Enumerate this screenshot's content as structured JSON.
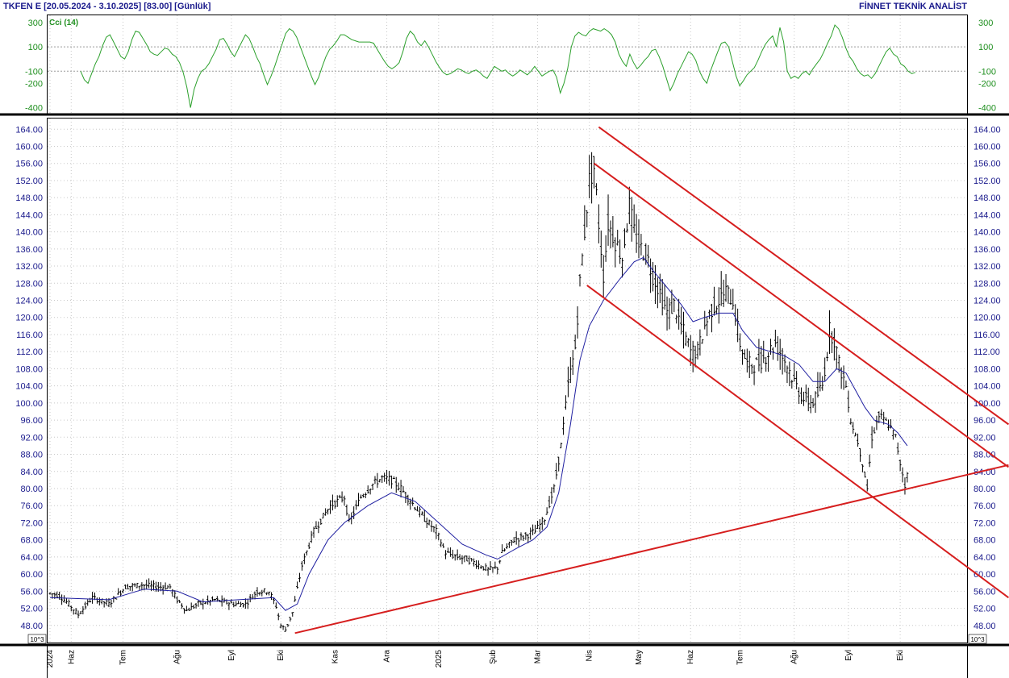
{
  "header": {
    "title": "TKFEN E  [20.05.2024 - 3.10.2025]  [83.00]  [Günlük]",
    "brand": "FİNNET TEKNİK ANALİST"
  },
  "indicator": {
    "label": "Cci (14)",
    "ticks": [
      {
        "v": 300,
        "label": "300"
      },
      {
        "v": 100,
        "label": "100"
      },
      {
        "v": -100,
        "label": "-100"
      },
      {
        "v": -200,
        "label": "-200"
      },
      {
        "v": -400,
        "label": "-400"
      }
    ],
    "ref_lines": [
      100,
      -100
    ],
    "values": [
      -100,
      -170,
      -200,
      -120,
      -40,
      20,
      110,
      180,
      200,
      140,
      80,
      20,
      0,
      60,
      160,
      230,
      220,
      170,
      120,
      60,
      40,
      30,
      60,
      90,
      80,
      40,
      20,
      -30,
      -110,
      -230,
      -400,
      -250,
      -160,
      -100,
      -80,
      -40,
      20,
      80,
      160,
      170,
      120,
      60,
      20,
      80,
      140,
      200,
      170,
      100,
      20,
      -40,
      -130,
      -210,
      -140,
      -60,
      30,
      120,
      210,
      250,
      230,
      180,
      100,
      20,
      -60,
      -140,
      -210,
      -150,
      -60,
      20,
      80,
      110,
      150,
      200,
      200,
      180,
      160,
      150,
      140,
      140,
      140,
      140,
      130,
      80,
      30,
      -20,
      -60,
      -80,
      -60,
      -30,
      60,
      170,
      230,
      200,
      140,
      110,
      150,
      100,
      40,
      -20,
      -70,
      -110,
      -130,
      -120,
      -100,
      -80,
      -90,
      -110,
      -120,
      -100,
      -90,
      -110,
      -140,
      -160,
      -110,
      -60,
      -80,
      -100,
      -90,
      -120,
      -140,
      -120,
      -90,
      -110,
      -130,
      -100,
      -60,
      -100,
      -140,
      -120,
      -100,
      -90,
      -150,
      -280,
      -200,
      -80,
      100,
      190,
      220,
      200,
      190,
      230,
      250,
      240,
      230,
      250,
      230,
      200,
      140,
      40,
      -20,
      -60,
      40,
      -30,
      -80,
      -50,
      -10,
      20,
      70,
      80,
      20,
      -60,
      -160,
      -260,
      -200,
      -120,
      -60,
      0,
      60,
      40,
      -10,
      -100,
      -160,
      -200,
      -100,
      -20,
      60,
      130,
      140,
      100,
      -20,
      -140,
      -220,
      -180,
      -130,
      -100,
      -70,
      -10,
      60,
      120,
      160,
      190,
      100,
      260,
      140,
      -100,
      -160,
      -140,
      -160,
      -120,
      -100,
      -130,
      -80,
      -40,
      0,
      60,
      130,
      190,
      280,
      250,
      180,
      90,
      20,
      -20,
      -80,
      -120,
      -140,
      -130,
      -160,
      -120,
      -60,
      0,
      60,
      90,
      40,
      20,
      -40,
      -60,
      -100,
      -120,
      -110
    ],
    "ymin": -450,
    "ymax": 360
  },
  "chart_data": {
    "type": "ohlc",
    "instrument": "TKFEN",
    "period": "20.05.2024 - 3.10.2025",
    "last": 83.0,
    "interval": "Günlük",
    "ylim": [
      44.0,
      166.5
    ],
    "y_ticks": [
      "164.00",
      "160.00",
      "156.00",
      "152.00",
      "148.00",
      "144.00",
      "140.00",
      "136.00",
      "132.00",
      "128.00",
      "124.00",
      "120.00",
      "116.00",
      "112.00",
      "108.00",
      "104.00",
      "100.00",
      "96.00",
      "92.00",
      "88.00",
      "84.00",
      "80.00",
      "76.00",
      "72.00",
      "68.00",
      "64.00",
      "60.00",
      "56.00",
      "52.00",
      "48.00"
    ],
    "x_ticks": [
      {
        "label": "2024",
        "i": 0
      },
      {
        "label": "Haz",
        "i": 9
      },
      {
        "label": "Tem",
        "i": 31
      },
      {
        "label": "Ağu",
        "i": 54
      },
      {
        "label": "Eyl",
        "i": 77
      },
      {
        "label": "Eki",
        "i": 98
      },
      {
        "label": "Kas",
        "i": 121
      },
      {
        "label": "Ara",
        "i": 143
      },
      {
        "label": "2025",
        "i": 165
      },
      {
        "label": "Şub",
        "i": 188
      },
      {
        "label": "Mar",
        "i": 207
      },
      {
        "label": "Nis",
        "i": 229
      },
      {
        "label": "May",
        "i": 250
      },
      {
        "label": "Haz",
        "i": 272
      },
      {
        "label": "Tem",
        "i": 293
      },
      {
        "label": "Ağu",
        "i": 316
      },
      {
        "label": "Eyl",
        "i": 339
      },
      {
        "label": "Eki",
        "i": 361
      }
    ],
    "price_anchors": [
      [
        0,
        55.5
      ],
      [
        4,
        55
      ],
      [
        8,
        53
      ],
      [
        12,
        50.5
      ],
      [
        18,
        54.5
      ],
      [
        25,
        53
      ],
      [
        32,
        57
      ],
      [
        39,
        57.5
      ],
      [
        46,
        57
      ],
      [
        51,
        57
      ],
      [
        54,
        54
      ],
      [
        58,
        51.5
      ],
      [
        63,
        53
      ],
      [
        70,
        54
      ],
      [
        78,
        53
      ],
      [
        83,
        53
      ],
      [
        88,
        56
      ],
      [
        93,
        56
      ],
      [
        96,
        52.5
      ],
      [
        98,
        48
      ],
      [
        100,
        47
      ],
      [
        103,
        51
      ],
      [
        107,
        62
      ],
      [
        112,
        70
      ],
      [
        119,
        76
      ],
      [
        125,
        78
      ],
      [
        127,
        72
      ],
      [
        132,
        78
      ],
      [
        137,
        81
      ],
      [
        141,
        82.5
      ],
      [
        145,
        82
      ],
      [
        149,
        80
      ],
      [
        154,
        76.5
      ],
      [
        159,
        73
      ],
      [
        164,
        70
      ],
      [
        168,
        65
      ],
      [
        173,
        64
      ],
      [
        177,
        63.5
      ],
      [
        181,
        62.5
      ],
      [
        186,
        61
      ],
      [
        190,
        61.5
      ],
      [
        192,
        65
      ],
      [
        197,
        68
      ],
      [
        202,
        69
      ],
      [
        206,
        70
      ],
      [
        210,
        73
      ],
      [
        214,
        80
      ],
      [
        217,
        90
      ],
      [
        220,
        104
      ],
      [
        223,
        113
      ],
      [
        225,
        128
      ],
      [
        227,
        140
      ],
      [
        229,
        152
      ],
      [
        231,
        155
      ],
      [
        233,
        142
      ],
      [
        235,
        130
      ],
      [
        237,
        142
      ],
      [
        240,
        138
      ],
      [
        243,
        134
      ],
      [
        246,
        146
      ],
      [
        248,
        140
      ],
      [
        251,
        136
      ],
      [
        253,
        135
      ],
      [
        256,
        130
      ],
      [
        259,
        126
      ],
      [
        262,
        121
      ],
      [
        265,
        123
      ],
      [
        268,
        118
      ],
      [
        272,
        112
      ],
      [
        275,
        112
      ],
      [
        278,
        118
      ],
      [
        281,
        122
      ],
      [
        284,
        124
      ],
      [
        287,
        126
      ],
      [
        290,
        124
      ],
      [
        293,
        114
      ],
      [
        296,
        109
      ],
      [
        300,
        109
      ],
      [
        304,
        111
      ],
      [
        308,
        114
      ],
      [
        312,
        110
      ],
      [
        316,
        105
      ],
      [
        320,
        101
      ],
      [
        324,
        100
      ],
      [
        328,
        104
      ],
      [
        330,
        112
      ],
      [
        331,
        117
      ],
      [
        333,
        115
      ],
      [
        335,
        109
      ],
      [
        338,
        104
      ],
      [
        340,
        96
      ],
      [
        343,
        91
      ],
      [
        345,
        86
      ],
      [
        347,
        80
      ],
      [
        349,
        92
      ],
      [
        352,
        97
      ],
      [
        356,
        95
      ],
      [
        359,
        92
      ],
      [
        361,
        86
      ],
      [
        363,
        81
      ],
      [
        364,
        83
      ]
    ],
    "sma": [
      {
        "x": 0,
        "y": 54.5
      },
      {
        "x": 25,
        "y": 54
      },
      {
        "x": 40,
        "y": 56.5
      },
      {
        "x": 54,
        "y": 56
      },
      {
        "x": 65,
        "y": 53.5
      },
      {
        "x": 80,
        "y": 54
      },
      {
        "x": 95,
        "y": 54.5
      },
      {
        "x": 100,
        "y": 51.5
      },
      {
        "x": 105,
        "y": 53
      },
      {
        "x": 110,
        "y": 60
      },
      {
        "x": 118,
        "y": 68
      },
      {
        "x": 125,
        "y": 72
      },
      {
        "x": 135,
        "y": 76
      },
      {
        "x": 145,
        "y": 79
      },
      {
        "x": 155,
        "y": 77
      },
      {
        "x": 165,
        "y": 72
      },
      {
        "x": 175,
        "y": 67
      },
      {
        "x": 185,
        "y": 64.5
      },
      {
        "x": 190,
        "y": 63.5
      },
      {
        "x": 198,
        "y": 66
      },
      {
        "x": 205,
        "y": 68
      },
      {
        "x": 211,
        "y": 71
      },
      {
        "x": 216,
        "y": 79
      },
      {
        "x": 221,
        "y": 95
      },
      {
        "x": 225,
        "y": 110
      },
      {
        "x": 229,
        "y": 118
      },
      {
        "x": 235,
        "y": 124
      },
      {
        "x": 242,
        "y": 129
      },
      {
        "x": 248,
        "y": 133
      },
      {
        "x": 252,
        "y": 134
      },
      {
        "x": 256,
        "y": 131
      },
      {
        "x": 262,
        "y": 127
      },
      {
        "x": 268,
        "y": 123
      },
      {
        "x": 273,
        "y": 119
      },
      {
        "x": 278,
        "y": 120
      },
      {
        "x": 284,
        "y": 121
      },
      {
        "x": 290,
        "y": 121
      },
      {
        "x": 294,
        "y": 117
      },
      {
        "x": 300,
        "y": 113
      },
      {
        "x": 306,
        "y": 112
      },
      {
        "x": 312,
        "y": 111
      },
      {
        "x": 318,
        "y": 109
      },
      {
        "x": 324,
        "y": 105
      },
      {
        "x": 329,
        "y": 105
      },
      {
        "x": 334,
        "y": 108
      },
      {
        "x": 338,
        "y": 107
      },
      {
        "x": 342,
        "y": 103
      },
      {
        "x": 346,
        "y": 99
      },
      {
        "x": 350,
        "y": 96
      },
      {
        "x": 356,
        "y": 95
      },
      {
        "x": 360,
        "y": 93
      },
      {
        "x": 364,
        "y": 90
      }
    ],
    "trendlines": [
      {
        "x1": 104,
        "y1": 46.2,
        "x2": 407,
        "y2": 85.5
      },
      {
        "x1": 233,
        "y1": 164.5,
        "x2": 407,
        "y2": 95.0
      },
      {
        "x1": 231,
        "y1": 156.0,
        "x2": 407,
        "y2": 85.0
      },
      {
        "x1": 228,
        "y1": 127.5,
        "x2": 407,
        "y2": 54.5
      }
    ],
    "x_max": 408
  },
  "scale_marker": "10^3"
}
